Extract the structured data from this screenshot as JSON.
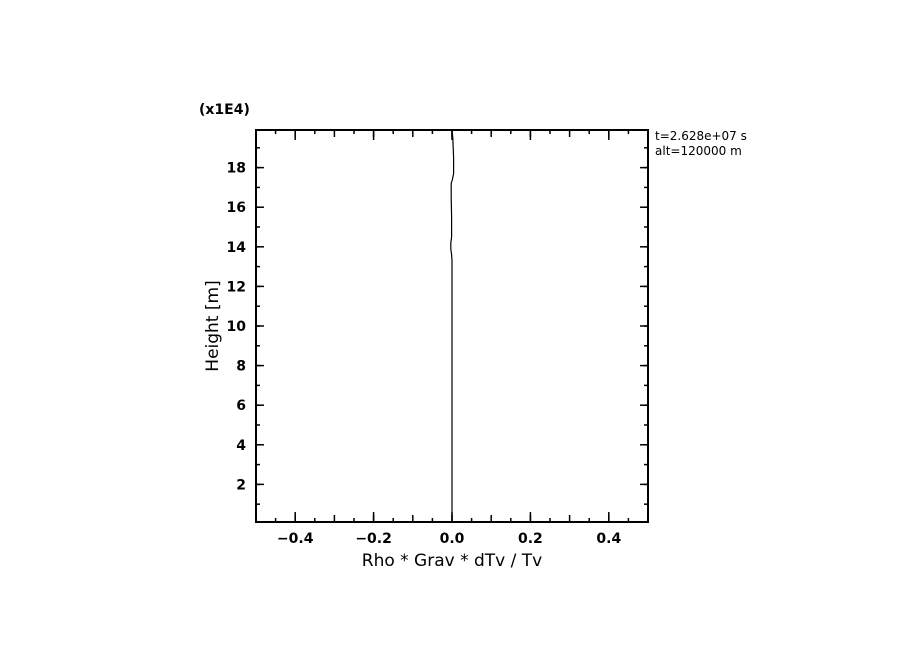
{
  "chart_data": {
    "type": "line",
    "xlabel": "Rho * Grav * dTv / Tv",
    "ylabel": "Height [m]",
    "y_multiplier": "(x1E4)",
    "xlim": [
      -0.5,
      0.5
    ],
    "ylim": [
      0.1,
      19.9
    ],
    "x_ticks": [
      -0.4,
      -0.2,
      0.0,
      0.2,
      0.4
    ],
    "x_tick_labels": [
      "−0.4",
      "−0.2",
      "0.0",
      "0.2",
      "0.4"
    ],
    "y_ticks": [
      2,
      4,
      6,
      8,
      10,
      12,
      14,
      16,
      18
    ],
    "y_tick_labels": [
      "2",
      "4",
      "6",
      "8",
      "10",
      "12",
      "14",
      "16",
      "18"
    ],
    "grid": false,
    "annotations": [
      "t=2.628e+07 s",
      "alt=120000 m"
    ],
    "series": [
      {
        "color": "#000000",
        "points": [
          [
            0.0,
            19.9
          ],
          [
            0.002,
            19.5
          ],
          [
            0.004,
            18.5
          ],
          [
            0.004,
            17.7
          ],
          [
            0.001,
            17.4
          ],
          [
            -0.002,
            17.2
          ],
          [
            -0.002,
            16.5
          ],
          [
            -0.001,
            15.5
          ],
          [
            -0.001,
            14.5
          ],
          [
            -0.003,
            14.2
          ],
          [
            -0.003,
            13.9
          ],
          [
            -0.001,
            13.6
          ],
          [
            0.0,
            13.3
          ],
          [
            0.0,
            0.1
          ]
        ]
      }
    ]
  }
}
